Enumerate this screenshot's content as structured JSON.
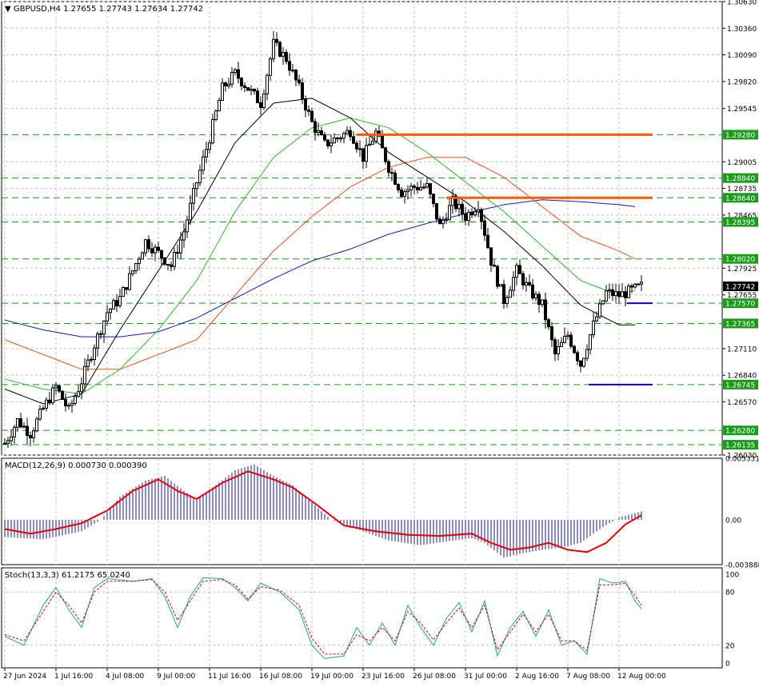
{
  "header": {
    "symbol": "GBPUSD,H4",
    "ohlc": "1.27655 1.27743 1.27634 1.27742"
  },
  "macd_header": "MACD(12,26,9) 0.000730 0.000390",
  "stoch_header": "Stoch(13,3,3) 61.2175 65.0240",
  "colors": {
    "candle": "#000000",
    "grid": "#c0c0c0",
    "level_line": "#1a9c1a",
    "ma_fast": "#000000",
    "ma_mid": "#2eb82e",
    "ma_slow": "#e8501e",
    "ma_long": "#1a1aa8",
    "resistance": "#ff5a00",
    "support": "#0000cc",
    "macd_hist": "#1a1a8c",
    "macd_signal": "#e00000",
    "stoch_main": "#20a0a0",
    "stoch_signal": "#e00000",
    "label_bg": "#1a9c1a",
    "current_bg": "#000000"
  },
  "chart_data": [
    {
      "type": "candlestick",
      "name": "GBPUSD,H4",
      "ylim": [
        1.2603,
        1.3063
      ],
      "y_ticks": [
        1.3063,
        1.3036,
        1.3009,
        1.2982,
        1.29545,
        1.29005,
        1.28735,
        1.28465,
        1.27925,
        1.27655,
        1.2711,
        1.2684,
        1.2657,
        1.2603
      ],
      "y_tick_labels": [
        "1.30630",
        "1.30360",
        "1.30090",
        "1.29820",
        "1.29545",
        "1.29005",
        "1.28735",
        "1.28465",
        "1.27925",
        "1.27655",
        "1.27110",
        "1.26840",
        "1.26570",
        "1.26030"
      ],
      "x_labels": [
        "27 Jun 2024",
        "1 Jul 16:00",
        "4 Jul 08:00",
        "9 Jul 00:00",
        "11 Jul 16:00",
        "16 Jul 08:00",
        "19 Jul 00:00",
        "23 Jul 16:00",
        "26 Jul 08:00",
        "31 Jul 00:00",
        "2 Aug 16:00",
        "7 Aug 08:00",
        "12 Aug 00:00"
      ],
      "levels": [
        {
          "value": 1.2928,
          "label": "1.29280"
        },
        {
          "value": 1.2884,
          "label": "1.28840"
        },
        {
          "value": 1.2864,
          "label": "1.28640"
        },
        {
          "value": 1.28395,
          "label": "1.28395"
        },
        {
          "value": 1.2802,
          "label": "1.28020"
        },
        {
          "value": 1.2757,
          "label": "1.27570"
        },
        {
          "value": 1.27365,
          "label": "1.27365"
        },
        {
          "value": 1.26745,
          "label": "1.26745"
        },
        {
          "value": 1.2628,
          "label": "1.26280"
        },
        {
          "value": 1.26135,
          "label": "1.26135"
        }
      ],
      "current_price": {
        "value": 1.27742,
        "label": "1.27742"
      },
      "resistance_lines": [
        {
          "from_bar": 110,
          "to_bar": 200,
          "value": 1.2928
        },
        {
          "from_bar": 138,
          "to_bar": 200,
          "value": 1.2864
        }
      ],
      "support_lines": [
        {
          "from_bar": 192,
          "to_bar": 200,
          "value": 1.2757
        },
        {
          "from_bar": 180,
          "to_bar": 200,
          "value": 1.26745
        }
      ],
      "close_path": [
        [
          0,
          1.2615
        ],
        [
          4,
          1.2638
        ],
        [
          8,
          1.2625
        ],
        [
          12,
          1.265
        ],
        [
          16,
          1.2672
        ],
        [
          20,
          1.2648
        ],
        [
          24,
          1.2678
        ],
        [
          28,
          1.2715
        ],
        [
          32,
          1.2748
        ],
        [
          36,
          1.2762
        ],
        [
          40,
          1.279
        ],
        [
          44,
          1.282
        ],
        [
          48,
          1.2808
        ],
        [
          52,
          1.2795
        ],
        [
          56,
          1.283
        ],
        [
          60,
          1.288
        ],
        [
          64,
          1.2925
        ],
        [
          68,
          1.2975
        ],
        [
          72,
          1.299
        ],
        [
          76,
          1.2975
        ],
        [
          80,
          1.296
        ],
        [
          84,
          1.302
        ],
        [
          88,
          1.3005
        ],
        [
          92,
          1.2975
        ],
        [
          96,
          1.294
        ],
        [
          100,
          1.2918
        ],
        [
          104,
          1.2925
        ],
        [
          108,
          1.2932
        ],
        [
          112,
          1.2905
        ],
        [
          116,
          1.293
        ],
        [
          120,
          1.2895
        ],
        [
          124,
          1.287
        ],
        [
          128,
          1.2875
        ],
        [
          132,
          1.2875
        ],
        [
          136,
          1.2835
        ],
        [
          140,
          1.286
        ],
        [
          144,
          1.2845
        ],
        [
          148,
          1.2858
        ],
        [
          152,
          1.28
        ],
        [
          156,
          1.276
        ],
        [
          160,
          1.279
        ],
        [
          164,
          1.277
        ],
        [
          168,
          1.2755
        ],
        [
          172,
          1.2705
        ],
        [
          176,
          1.2725
        ],
        [
          180,
          1.2695
        ],
        [
          184,
          1.2735
        ],
        [
          188,
          1.2768
        ],
        [
          192,
          1.2765
        ],
        [
          196,
          1.277
        ],
        [
          199,
          1.27742
        ]
      ],
      "ma_fast_path": [
        [
          0,
          1.267
        ],
        [
          12,
          1.2655
        ],
        [
          24,
          1.2665
        ],
        [
          36,
          1.273
        ],
        [
          48,
          1.279
        ],
        [
          60,
          1.285
        ],
        [
          72,
          1.292
        ],
        [
          84,
          1.296
        ],
        [
          96,
          1.2965
        ],
        [
          108,
          1.2945
        ],
        [
          120,
          1.291
        ],
        [
          132,
          1.2885
        ],
        [
          144,
          1.286
        ],
        [
          156,
          1.283
        ],
        [
          168,
          1.2795
        ],
        [
          180,
          1.2755
        ],
        [
          192,
          1.2735
        ],
        [
          197,
          1.2735
        ]
      ],
      "ma_mid_path": [
        [
          0,
          1.268
        ],
        [
          12,
          1.267
        ],
        [
          24,
          1.2665
        ],
        [
          36,
          1.269
        ],
        [
          48,
          1.273
        ],
        [
          60,
          1.278
        ],
        [
          72,
          1.285
        ],
        [
          84,
          1.2905
        ],
        [
          96,
          1.2935
        ],
        [
          108,
          1.2945
        ],
        [
          120,
          1.2935
        ],
        [
          132,
          1.291
        ],
        [
          144,
          1.288
        ],
        [
          156,
          1.285
        ],
        [
          168,
          1.2815
        ],
        [
          180,
          1.278
        ],
        [
          192,
          1.2765
        ],
        [
          197,
          1.277
        ]
      ],
      "ma_slow_path": [
        [
          0,
          1.272
        ],
        [
          12,
          1.2705
        ],
        [
          24,
          1.269
        ],
        [
          36,
          1.269
        ],
        [
          48,
          1.2705
        ],
        [
          60,
          1.272
        ],
        [
          72,
          1.2765
        ],
        [
          84,
          1.281
        ],
        [
          96,
          1.2845
        ],
        [
          108,
          1.2875
        ],
        [
          120,
          1.2895
        ],
        [
          132,
          1.2905
        ],
        [
          144,
          1.2905
        ],
        [
          156,
          1.2885
        ],
        [
          168,
          1.2855
        ],
        [
          180,
          1.2825
        ],
        [
          192,
          1.281
        ],
        [
          197,
          1.2802
        ]
      ],
      "ma_long_path": [
        [
          0,
          1.274
        ],
        [
          12,
          1.273
        ],
        [
          24,
          1.2723
        ],
        [
          36,
          1.2723
        ],
        [
          48,
          1.2728
        ],
        [
          60,
          1.2742
        ],
        [
          72,
          1.2762
        ],
        [
          84,
          1.2782
        ],
        [
          96,
          1.28
        ],
        [
          108,
          1.2812
        ],
        [
          120,
          1.2827
        ],
        [
          132,
          1.2838
        ],
        [
          144,
          1.2848
        ],
        [
          156,
          1.2857
        ],
        [
          168,
          1.2862
        ],
        [
          180,
          1.286
        ],
        [
          192,
          1.2857
        ],
        [
          197,
          1.2855
        ]
      ]
    },
    {
      "type": "bar",
      "name": "MACD(12,26,9)",
      "ylim": [
        -0.003888,
        0.005331
      ],
      "y_ticks": [
        0.005331,
        0.0,
        -0.003888
      ],
      "y_tick_labels": [
        "0.005331",
        "0.00",
        "-0.003888"
      ],
      "hist_path": [
        [
          0,
          -0.0015
        ],
        [
          12,
          -0.0017
        ],
        [
          24,
          -0.001
        ],
        [
          30,
          0.0
        ],
        [
          36,
          0.002
        ],
        [
          44,
          0.0034
        ],
        [
          50,
          0.0038
        ],
        [
          56,
          0.0025
        ],
        [
          60,
          0.0018
        ],
        [
          66,
          0.003
        ],
        [
          72,
          0.0043
        ],
        [
          78,
          0.0048
        ],
        [
          84,
          0.0038
        ],
        [
          90,
          0.003
        ],
        [
          96,
          0.0015
        ],
        [
          102,
          0.0
        ],
        [
          110,
          -0.0008
        ],
        [
          120,
          -0.0018
        ],
        [
          130,
          -0.0022
        ],
        [
          140,
          -0.0018
        ],
        [
          146,
          -0.0016
        ],
        [
          150,
          -0.002
        ],
        [
          156,
          -0.0033
        ],
        [
          160,
          -0.003
        ],
        [
          168,
          -0.0026
        ],
        [
          174,
          -0.0024
        ],
        [
          180,
          -0.002
        ],
        [
          186,
          -0.0008
        ],
        [
          192,
          0.0002
        ],
        [
          199,
          0.00073
        ]
      ],
      "signal_path": [
        [
          0,
          -0.0008
        ],
        [
          8,
          -0.0012
        ],
        [
          16,
          -0.0008
        ],
        [
          24,
          -0.0003
        ],
        [
          32,
          0.0008
        ],
        [
          40,
          0.0025
        ],
        [
          48,
          0.0035
        ],
        [
          54,
          0.0025
        ],
        [
          60,
          0.0018
        ],
        [
          68,
          0.0032
        ],
        [
          76,
          0.0042
        ],
        [
          84,
          0.0035
        ],
        [
          90,
          0.0028
        ],
        [
          98,
          0.0012
        ],
        [
          106,
          -0.0005
        ],
        [
          116,
          -0.001
        ],
        [
          126,
          -0.0013
        ],
        [
          136,
          -0.0014
        ],
        [
          146,
          -0.0012
        ],
        [
          152,
          -0.002
        ],
        [
          158,
          -0.0026
        ],
        [
          164,
          -0.0024
        ],
        [
          170,
          -0.002
        ],
        [
          176,
          -0.0026
        ],
        [
          182,
          -0.0028
        ],
        [
          188,
          -0.002
        ],
        [
          194,
          -0.0004
        ],
        [
          199,
          0.00039
        ]
      ]
    },
    {
      "type": "line",
      "name": "Stoch(13,3,3)",
      "ylim": [
        0,
        100
      ],
      "y_ticks": [
        100,
        80,
        20,
        0
      ],
      "y_tick_labels": [
        "100",
        "80",
        "20",
        "0"
      ],
      "main_path": [
        [
          0,
          30
        ],
        [
          6,
          20
        ],
        [
          12,
          65
        ],
        [
          16,
          85
        ],
        [
          20,
          60
        ],
        [
          24,
          40
        ],
        [
          28,
          85
        ],
        [
          32,
          95
        ],
        [
          40,
          92
        ],
        [
          46,
          95
        ],
        [
          50,
          75
        ],
        [
          54,
          40
        ],
        [
          58,
          75
        ],
        [
          62,
          96
        ],
        [
          68,
          95
        ],
        [
          72,
          85
        ],
        [
          76,
          70
        ],
        [
          80,
          90
        ],
        [
          86,
          80
        ],
        [
          92,
          60
        ],
        [
          96,
          20
        ],
        [
          100,
          5
        ],
        [
          106,
          8
        ],
        [
          110,
          40
        ],
        [
          114,
          20
        ],
        [
          118,
          45
        ],
        [
          122,
          20
        ],
        [
          126,
          65
        ],
        [
          130,
          40
        ],
        [
          134,
          20
        ],
        [
          138,
          50
        ],
        [
          142,
          68
        ],
        [
          146,
          35
        ],
        [
          150,
          70
        ],
        [
          154,
          8
        ],
        [
          158,
          40
        ],
        [
          162,
          58
        ],
        [
          166,
          30
        ],
        [
          170,
          60
        ],
        [
          174,
          20
        ],
        [
          178,
          25
        ],
        [
          182,
          10
        ],
        [
          186,
          95
        ],
        [
          190,
          90
        ],
        [
          194,
          92
        ],
        [
          197,
          70
        ],
        [
          199,
          61
        ]
      ],
      "signal_path": [
        [
          0,
          32
        ],
        [
          6,
          25
        ],
        [
          12,
          58
        ],
        [
          16,
          80
        ],
        [
          20,
          65
        ],
        [
          24,
          45
        ],
        [
          28,
          80
        ],
        [
          32,
          92
        ],
        [
          40,
          92
        ],
        [
          46,
          94
        ],
        [
          50,
          80
        ],
        [
          54,
          48
        ],
        [
          58,
          70
        ],
        [
          62,
          92
        ],
        [
          68,
          94
        ],
        [
          72,
          88
        ],
        [
          76,
          72
        ],
        [
          80,
          86
        ],
        [
          86,
          82
        ],
        [
          92,
          65
        ],
        [
          96,
          28
        ],
        [
          100,
          10
        ],
        [
          106,
          10
        ],
        [
          110,
          32
        ],
        [
          114,
          25
        ],
        [
          118,
          40
        ],
        [
          122,
          25
        ],
        [
          126,
          58
        ],
        [
          130,
          45
        ],
        [
          134,
          26
        ],
        [
          138,
          45
        ],
        [
          142,
          62
        ],
        [
          146,
          40
        ],
        [
          150,
          65
        ],
        [
          154,
          15
        ],
        [
          158,
          35
        ],
        [
          162,
          55
        ],
        [
          166,
          35
        ],
        [
          170,
          55
        ],
        [
          174,
          25
        ],
        [
          178,
          25
        ],
        [
          182,
          14
        ],
        [
          186,
          88
        ],
        [
          190,
          88
        ],
        [
          194,
          90
        ],
        [
          197,
          76
        ],
        [
          199,
          65
        ]
      ]
    }
  ]
}
